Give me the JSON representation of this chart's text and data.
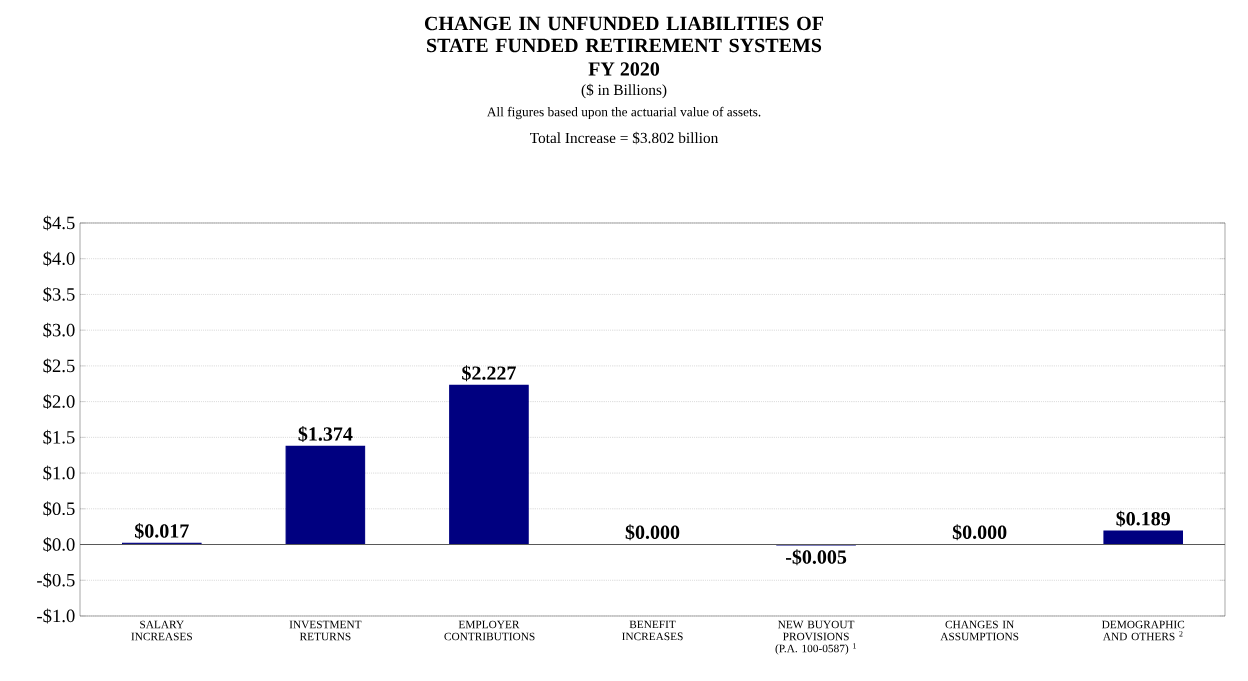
{
  "chart_data": {
    "type": "bar",
    "title": "CHANGE IN UNFUNDED LIABILITIES OF STATE FUNDED RETIREMENT SYSTEMS",
    "subtitle": "FY 2020",
    "annotations": [
      "($ in Billions)",
      "All figures based upon the actuarial value of assets.",
      "Total Increase = $3.802 billion"
    ],
    "categories": [
      "SALARY INCREASES",
      "INVESTMENT RETURNS",
      "EMPLOYER CONTRIBUTIONS",
      "BENEFIT INCREASES",
      "NEW BUYOUT PROVISIONS (P.A. 100-0587) $^{1}$",
      "CHANGES IN ASSUMPTIONS",
      "DEMOGRAPHIC AND OTHERS $^{2}$"
    ],
    "values": [
      0.017,
      1.374,
      2.227,
      0.0,
      -0.005,
      0.0,
      0.189
    ],
    "value_labels": [
      "$0.017",
      "$1.374",
      "$2.227",
      "$0.000",
      "-$0.005",
      "$0.000",
      "$0.189"
    ],
    "color": "#000080",
    "ylim": [
      -1.0,
      4.5
    ],
    "yticks": [
      {
        "value": -1.0,
        "label": "-$1.0"
      },
      {
        "value": -0.5,
        "label": "-$0.5"
      },
      {
        "value": 0.0,
        "label": "$0.0"
      },
      {
        "value": 0.5,
        "label": "$0.5"
      },
      {
        "value": 1.0,
        "label": "$1.0"
      },
      {
        "value": 1.5,
        "label": "$1.5"
      },
      {
        "value": 2.0,
        "label": "$2.0"
      },
      {
        "value": 2.5,
        "label": "$2.5"
      },
      {
        "value": 3.0,
        "label": "$3.0"
      },
      {
        "value": 3.5,
        "label": "$3.5"
      },
      {
        "value": 4.0,
        "label": "$4.0"
      },
      {
        "value": 4.5,
        "label": "$4.5"
      }
    ],
    "ref_lines": [
      {
        "axis": "y",
        "value": 0
      }
    ],
    "grid": "y"
  }
}
